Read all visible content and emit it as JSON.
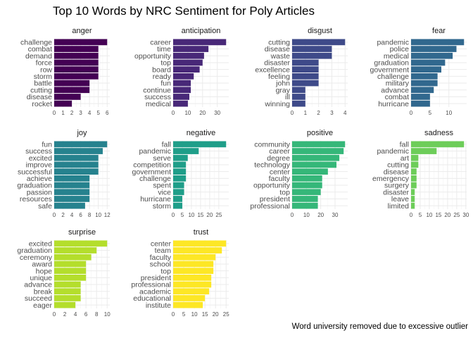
{
  "title": "Top 10 Words by NRC Sentiment for Poly Articles",
  "caption": "Word university removed due to excessive outlier",
  "chart_data": {
    "type": "bar",
    "orientation": "horizontal",
    "grid": true,
    "facets": [
      {
        "name": "anger",
        "color": "#440154",
        "categories": [
          "challenge",
          "combat",
          "demand",
          "force",
          "row",
          "storm",
          "battle",
          "cutting",
          "disease",
          "rocket"
        ],
        "values": [
          6,
          5,
          5,
          5,
          5,
          5,
          4,
          4,
          3,
          2
        ],
        "xlim": [
          0,
          6.3
        ],
        "xticks": [
          0,
          1,
          2,
          3,
          4,
          5,
          6
        ]
      },
      {
        "name": "anticipation",
        "color": "#482878",
        "categories": [
          "career",
          "time",
          "opportunity",
          "top",
          "board",
          "ready",
          "fun",
          "continue",
          "success",
          "medical"
        ],
        "values": [
          36,
          24,
          21,
          20,
          18,
          14,
          12,
          12,
          11,
          10
        ],
        "xlim": [
          0,
          37.8
        ],
        "xticks": [
          0,
          10,
          20,
          30
        ]
      },
      {
        "name": "disgust",
        "color": "#3E4A89",
        "categories": [
          "cutting",
          "disease",
          "waste",
          "disaster",
          "excellence",
          "feeling",
          "john",
          "gray",
          "ill",
          "winning"
        ],
        "values": [
          4,
          3,
          3,
          2,
          2,
          2,
          2,
          1,
          1,
          1
        ],
        "xlim": [
          0,
          4.2
        ],
        "xticks": [
          0,
          1,
          2,
          3,
          4
        ]
      },
      {
        "name": "fear",
        "color": "#31688E",
        "categories": [
          "pandemic",
          "police",
          "medical",
          "graduation",
          "government",
          "challenge",
          "military",
          "advance",
          "combat",
          "hurricane"
        ],
        "values": [
          14,
          12,
          11,
          9,
          8,
          7,
          7,
          6,
          5,
          5
        ],
        "xlim": [
          0,
          14.7
        ],
        "xticks": [
          0,
          5,
          10
        ]
      },
      {
        "name": "joy",
        "color": "#26828E",
        "categories": [
          "fun",
          "success",
          "excited",
          "improve",
          "successful",
          "achieve",
          "graduation",
          "passion",
          "resources",
          "safe"
        ],
        "values": [
          12,
          11,
          10,
          10,
          10,
          8,
          8,
          8,
          8,
          7
        ],
        "xlim": [
          0,
          12.6
        ],
        "xticks": [
          0,
          2,
          4,
          6,
          8,
          10,
          12
        ]
      },
      {
        "name": "negative",
        "color": "#1F9E89",
        "categories": [
          "fall",
          "pandemic",
          "serve",
          "competition",
          "government",
          "challenge",
          "spent",
          "vice",
          "hurricane",
          "storm"
        ],
        "values": [
          29,
          14,
          8,
          7,
          7,
          7,
          6,
          6,
          5,
          5
        ],
        "xlim": [
          0,
          30.45
        ],
        "xticks": [
          0,
          5,
          10,
          15,
          20,
          25
        ]
      },
      {
        "name": "positive",
        "color": "#35B779",
        "categories": [
          "community",
          "career",
          "degree",
          "technology",
          "center",
          "faculty",
          "opportunity",
          "top",
          "president",
          "professional"
        ],
        "values": [
          37,
          36,
          33,
          31,
          25,
          21,
          21,
          20,
          18,
          18
        ],
        "xlim": [
          0,
          38.85
        ],
        "xticks": [
          0,
          10,
          20,
          30
        ]
      },
      {
        "name": "sadness",
        "color": "#6DCD59",
        "categories": [
          "fall",
          "pandemic",
          "art",
          "cutting",
          "disease",
          "emergency",
          "surgery",
          "disaster",
          "leave",
          "limited"
        ],
        "values": [
          29,
          14,
          4,
          4,
          3,
          3,
          3,
          2,
          2,
          2
        ],
        "xlim": [
          0,
          30.45
        ],
        "xticks": [
          0,
          5,
          10,
          15,
          20,
          25,
          30
        ]
      },
      {
        "name": "surprise",
        "color": "#B4DE2C",
        "categories": [
          "excited",
          "graduation",
          "ceremony",
          "award",
          "hope",
          "unique",
          "advance",
          "break",
          "succeed",
          "eager"
        ],
        "values": [
          10,
          8,
          7,
          6,
          6,
          6,
          5,
          5,
          5,
          4
        ],
        "xlim": [
          0,
          10.5
        ],
        "xticks": [
          0,
          2,
          4,
          6,
          8,
          10
        ]
      },
      {
        "name": "trust",
        "color": "#FDE725",
        "categories": [
          "center",
          "team",
          "faculty",
          "school",
          "top",
          "president",
          "professional",
          "academic",
          "educational",
          "institute"
        ],
        "values": [
          25,
          23,
          20,
          19,
          19,
          18,
          18,
          17,
          15,
          14
        ],
        "xlim": [
          0,
          26.25
        ],
        "xticks": [
          0,
          5,
          10,
          15,
          20,
          25
        ]
      }
    ]
  }
}
